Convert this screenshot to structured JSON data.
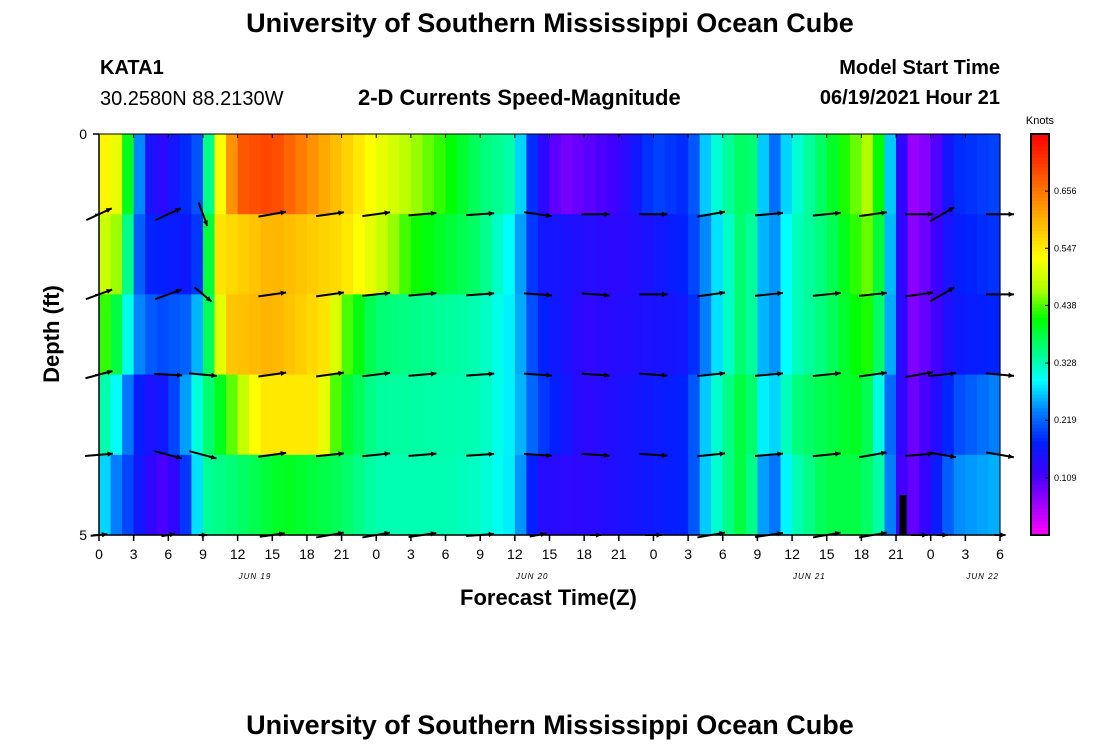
{
  "header": {
    "title": "University of Southern Mississippi Ocean Cube",
    "station_id": "KATA1",
    "station_coords": "30.2580N  88.2130W",
    "chart_subtitle": "2-D Currents Speed-Magnitude",
    "model_start_label": "Model Start Time",
    "model_start_value": "06/19/2021 Hour 21"
  },
  "footer": {
    "title": "University of Southern Mississippi Ocean Cube"
  },
  "colors": {
    "scale": [
      "#ff00ff",
      "#9f00ff",
      "#3c00ff",
      "#0020ff",
      "#007fff",
      "#00ffff",
      "#00ff7f",
      "#00ff00",
      "#b4ff00",
      "#ffff00",
      "#ffbf00",
      "#ff7f00",
      "#ff3c00",
      "#ff0000"
    ]
  },
  "chart_data": {
    "type": "heatmap",
    "title": "2-D Currents Speed-Magnitude",
    "xlabel": "Forecast Time(Z)",
    "ylabel": "Depth (ft)",
    "colorbar_label": "Knots",
    "colorbar_range": [
      0.0,
      0.765
    ],
    "colorbar_ticks": [
      "0.656",
      "0.547",
      "0.438",
      "0.328",
      "0.219",
      "0.109"
    ],
    "colorbar_tick_values": [
      0.656,
      0.547,
      0.438,
      0.328,
      0.219,
      0.109
    ],
    "ylim": [
      0,
      5
    ],
    "y_ticks": [
      "0",
      "5"
    ],
    "x_tick_labels": [
      "0",
      "3",
      "6",
      "9",
      "12",
      "15",
      "18",
      "21",
      "0",
      "3",
      "6",
      "9",
      "12",
      "15",
      "18",
      "21",
      "0",
      "3",
      "6",
      "9",
      "12",
      "15",
      "18",
      "21",
      "0",
      "3",
      "6"
    ],
    "date_labels": [
      {
        "label": "JUN 19",
        "tick_index": 4.5
      },
      {
        "label": "JUN 20",
        "tick_index": 12.5
      },
      {
        "label": "JUN 21",
        "tick_index": 20.5
      },
      {
        "label": "JUN 22",
        "tick_index": 25.5
      }
    ],
    "hours": 78,
    "depth_layers": [
      {
        "depth_ft": 0.5,
        "keys": [
          [
            0,
            0.55
          ],
          [
            2,
            0.5
          ],
          [
            3,
            0.3
          ],
          [
            4,
            0.18
          ],
          [
            5,
            0.12
          ],
          [
            9,
            0.22
          ],
          [
            10,
            0.48
          ],
          [
            12,
            0.68
          ],
          [
            15,
            0.7
          ],
          [
            21,
            0.58
          ],
          [
            24,
            0.52
          ],
          [
            30,
            0.42
          ],
          [
            33,
            0.36
          ],
          [
            36,
            0.33
          ],
          [
            37,
            0.22
          ],
          [
            38,
            0.15
          ],
          [
            40,
            0.08
          ],
          [
            45,
            0.12
          ],
          [
            48,
            0.2
          ],
          [
            51,
            0.18
          ],
          [
            53,
            0.3
          ],
          [
            56,
            0.38
          ],
          [
            57,
            0.34
          ],
          [
            58,
            0.2
          ],
          [
            60,
            0.3
          ],
          [
            63,
            0.38
          ],
          [
            66,
            0.46
          ],
          [
            67,
            0.48
          ],
          [
            69,
            0.2
          ],
          [
            70,
            0.06
          ],
          [
            72,
            0.08
          ],
          [
            74,
            0.18
          ],
          [
            78,
            0.2
          ]
        ]
      },
      {
        "depth_ft": 1.5,
        "keys": [
          [
            0,
            0.5
          ],
          [
            2,
            0.45
          ],
          [
            3,
            0.25
          ],
          [
            4,
            0.18
          ],
          [
            8,
            0.16
          ],
          [
            9,
            0.22
          ],
          [
            10,
            0.55
          ],
          [
            15,
            0.6
          ],
          [
            21,
            0.56
          ],
          [
            24,
            0.5
          ],
          [
            27,
            0.42
          ],
          [
            33,
            0.36
          ],
          [
            36,
            0.28
          ],
          [
            37,
            0.22
          ],
          [
            38,
            0.16
          ],
          [
            45,
            0.13
          ],
          [
            51,
            0.18
          ],
          [
            53,
            0.26
          ],
          [
            56,
            0.38
          ],
          [
            58,
            0.22
          ],
          [
            60,
            0.32
          ],
          [
            63,
            0.36
          ],
          [
            66,
            0.44
          ],
          [
            67,
            0.45
          ],
          [
            69,
            0.2
          ],
          [
            70,
            0.06
          ],
          [
            72,
            0.1
          ],
          [
            74,
            0.17
          ],
          [
            78,
            0.19
          ]
        ]
      },
      {
        "depth_ft": 2.5,
        "keys": [
          [
            0,
            0.45
          ],
          [
            2,
            0.36
          ],
          [
            3,
            0.25
          ],
          [
            5,
            0.2
          ],
          [
            8,
            0.22
          ],
          [
            9,
            0.3
          ],
          [
            11,
            0.58
          ],
          [
            15,
            0.6
          ],
          [
            20,
            0.55
          ],
          [
            21,
            0.45
          ],
          [
            24,
            0.36
          ],
          [
            30,
            0.34
          ],
          [
            33,
            0.33
          ],
          [
            36,
            0.28
          ],
          [
            38,
            0.18
          ],
          [
            42,
            0.13
          ],
          [
            51,
            0.16
          ],
          [
            53,
            0.26
          ],
          [
            56,
            0.38
          ],
          [
            58,
            0.22
          ],
          [
            60,
            0.32
          ],
          [
            63,
            0.36
          ],
          [
            66,
            0.42
          ],
          [
            67,
            0.42
          ],
          [
            69,
            0.2
          ],
          [
            70,
            0.07
          ],
          [
            72,
            0.1
          ],
          [
            74,
            0.16
          ],
          [
            78,
            0.18
          ]
        ]
      },
      {
        "depth_ft": 3.5,
        "keys": [
          [
            0,
            0.35
          ],
          [
            2,
            0.28
          ],
          [
            3,
            0.18
          ],
          [
            5,
            0.14
          ],
          [
            7,
            0.22
          ],
          [
            9,
            0.34
          ],
          [
            11,
            0.42
          ],
          [
            14,
            0.55
          ],
          [
            19,
            0.55
          ],
          [
            21,
            0.4
          ],
          [
            24,
            0.34
          ],
          [
            33,
            0.33
          ],
          [
            36,
            0.28
          ],
          [
            38,
            0.2
          ],
          [
            42,
            0.13
          ],
          [
            51,
            0.18
          ],
          [
            53,
            0.3
          ],
          [
            56,
            0.4
          ],
          [
            58,
            0.25
          ],
          [
            60,
            0.35
          ],
          [
            63,
            0.38
          ],
          [
            66,
            0.4
          ],
          [
            67,
            0.35
          ],
          [
            69,
            0.18
          ],
          [
            70,
            0.08
          ],
          [
            72,
            0.12
          ],
          [
            74,
            0.2
          ],
          [
            78,
            0.24
          ]
        ]
      },
      {
        "depth_ft": 4.5,
        "keys": [
          [
            0,
            0.3
          ],
          [
            1,
            0.25
          ],
          [
            2,
            0.22
          ],
          [
            4,
            0.14
          ],
          [
            6,
            0.1
          ],
          [
            8,
            0.22
          ],
          [
            9,
            0.34
          ],
          [
            12,
            0.36
          ],
          [
            16,
            0.4
          ],
          [
            21,
            0.37
          ],
          [
            24,
            0.33
          ],
          [
            30,
            0.33
          ],
          [
            33,
            0.32
          ],
          [
            36,
            0.28
          ],
          [
            38,
            0.14
          ],
          [
            42,
            0.13
          ],
          [
            51,
            0.18
          ],
          [
            53,
            0.3
          ],
          [
            56,
            0.4
          ],
          [
            58,
            0.2
          ],
          [
            60,
            0.32
          ],
          [
            63,
            0.38
          ],
          [
            66,
            0.38
          ],
          [
            68,
            0.32
          ],
          [
            69,
            0.15
          ],
          [
            70,
            0.08
          ],
          [
            72,
            0.14
          ],
          [
            74,
            0.24
          ],
          [
            78,
            0.26
          ]
        ]
      }
    ],
    "vectors_angle_deg": {
      "columns_hours": [
        0,
        6,
        9,
        15,
        20,
        24,
        28,
        33,
        38,
        43,
        48,
        53,
        58,
        63,
        67,
        71,
        73,
        78
      ],
      "rows": [
        [
          25,
          25,
          -70,
          10,
          8,
          8,
          5,
          4,
          -8,
          0,
          0,
          10,
          5,
          6,
          8,
          0,
          30,
          0
        ],
        [
          20,
          20,
          -40,
          8,
          8,
          6,
          5,
          4,
          -4,
          -4,
          0,
          8,
          6,
          6,
          6,
          8,
          30,
          0
        ],
        [
          15,
          -3,
          -5,
          8,
          8,
          7,
          5,
          4,
          -4,
          -4,
          -4,
          6,
          5,
          6,
          8,
          10,
          6,
          -5
        ],
        [
          5,
          -15,
          -15,
          8,
          6,
          6,
          5,
          4,
          -4,
          -4,
          -4,
          6,
          5,
          6,
          10,
          5,
          -10,
          -10
        ],
        [
          5,
          10,
          0,
          8,
          10,
          10,
          8,
          4,
          10,
          0,
          0,
          10,
          8,
          10,
          10,
          0,
          0,
          0
        ]
      ],
      "lengths": [
        [
          1,
          1,
          0.9,
          1,
          1,
          1,
          1,
          1,
          1,
          1,
          1,
          1,
          1,
          1,
          1,
          1,
          1,
          1
        ],
        [
          1,
          1,
          0.8,
          1,
          1,
          1,
          1,
          1,
          1,
          1,
          1,
          1,
          1,
          1,
          1,
          1,
          1,
          1
        ],
        [
          1,
          1,
          1,
          1,
          1,
          1,
          1,
          1,
          1,
          1,
          1,
          1,
          1,
          1,
          1,
          1,
          1,
          1
        ],
        [
          1,
          1,
          1,
          1,
          1,
          1,
          1,
          1,
          1,
          1,
          1,
          1,
          1,
          1,
          1,
          1,
          1,
          1
        ],
        [
          0.6,
          0.5,
          0.3,
          0.9,
          1,
          1,
          1,
          1,
          0.6,
          0.4,
          0.6,
          1,
          1,
          1,
          1,
          0.6,
          0.4,
          0.4
        ]
      ]
    }
  }
}
